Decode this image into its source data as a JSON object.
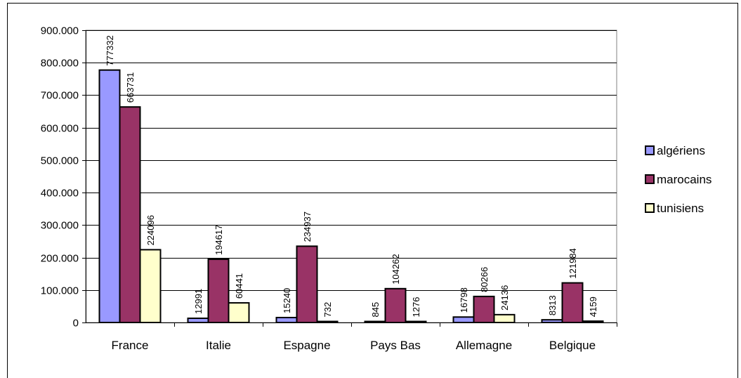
{
  "chart_data": {
    "type": "bar",
    "categories": [
      "France",
      "Italie",
      "Espagne",
      "Pays Bas",
      "Allemagne",
      "Belgique"
    ],
    "series": [
      {
        "name": "algériens",
        "color": "#9999ff",
        "values": [
          777332,
          12991,
          15240,
          845,
          16798,
          8313
        ]
      },
      {
        "name": "marocains",
        "color": "#993366",
        "values": [
          663731,
          194617,
          234937,
          104262,
          80266,
          121984
        ]
      },
      {
        "name": "tunisiens",
        "color": "#ffffcc",
        "values": [
          224096,
          60441,
          732,
          1276,
          24136,
          4159
        ]
      }
    ],
    "data_labels": [
      [
        "777332",
        "12991",
        "15240",
        "845",
        "16798",
        "8313"
      ],
      [
        "663731",
        "194617",
        "234937",
        "104262",
        "80266",
        "121984"
      ],
      [
        "224096",
        "60441",
        "732",
        "1276",
        "24136",
        "4159"
      ]
    ],
    "yticks": [
      "0",
      "100.000",
      "200.000",
      "300.000",
      "400.000",
      "500.000",
      "600.000",
      "700.000",
      "800.000",
      "900.000"
    ],
    "ylim": [
      0,
      900000
    ],
    "grid": true,
    "legend_position": "right"
  }
}
